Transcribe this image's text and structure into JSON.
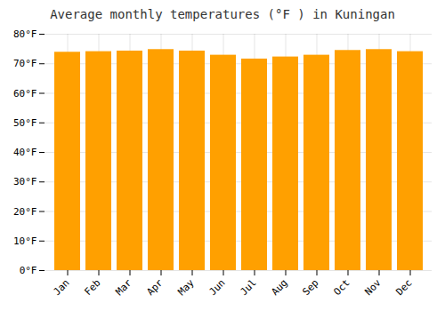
{
  "chart_data": {
    "type": "bar",
    "title": "Average monthly temperatures (°F ) in Kuningan",
    "categories": [
      "Jan",
      "Feb",
      "Mar",
      "Apr",
      "May",
      "Jun",
      "Jul",
      "Aug",
      "Sep",
      "Oct",
      "Nov",
      "Dec"
    ],
    "values": [
      73.9,
      74.1,
      74.3,
      74.8,
      74.3,
      72.9,
      71.6,
      72.3,
      72.9,
      74.5,
      74.8,
      74.1
    ],
    "color": "#FFA000",
    "ylim": [
      0,
      80
    ],
    "yticks": [
      {
        "value": 0,
        "label": "0°F"
      },
      {
        "value": 10,
        "label": "10°F"
      },
      {
        "value": 20,
        "label": "20°F"
      },
      {
        "value": 30,
        "label": "30°F"
      },
      {
        "value": 40,
        "label": "40°F"
      },
      {
        "value": 50,
        "label": "50°F"
      },
      {
        "value": 60,
        "label": "60°F"
      },
      {
        "value": 70,
        "label": "70°F"
      },
      {
        "value": 80,
        "label": "80°F"
      }
    ],
    "grid": true
  }
}
